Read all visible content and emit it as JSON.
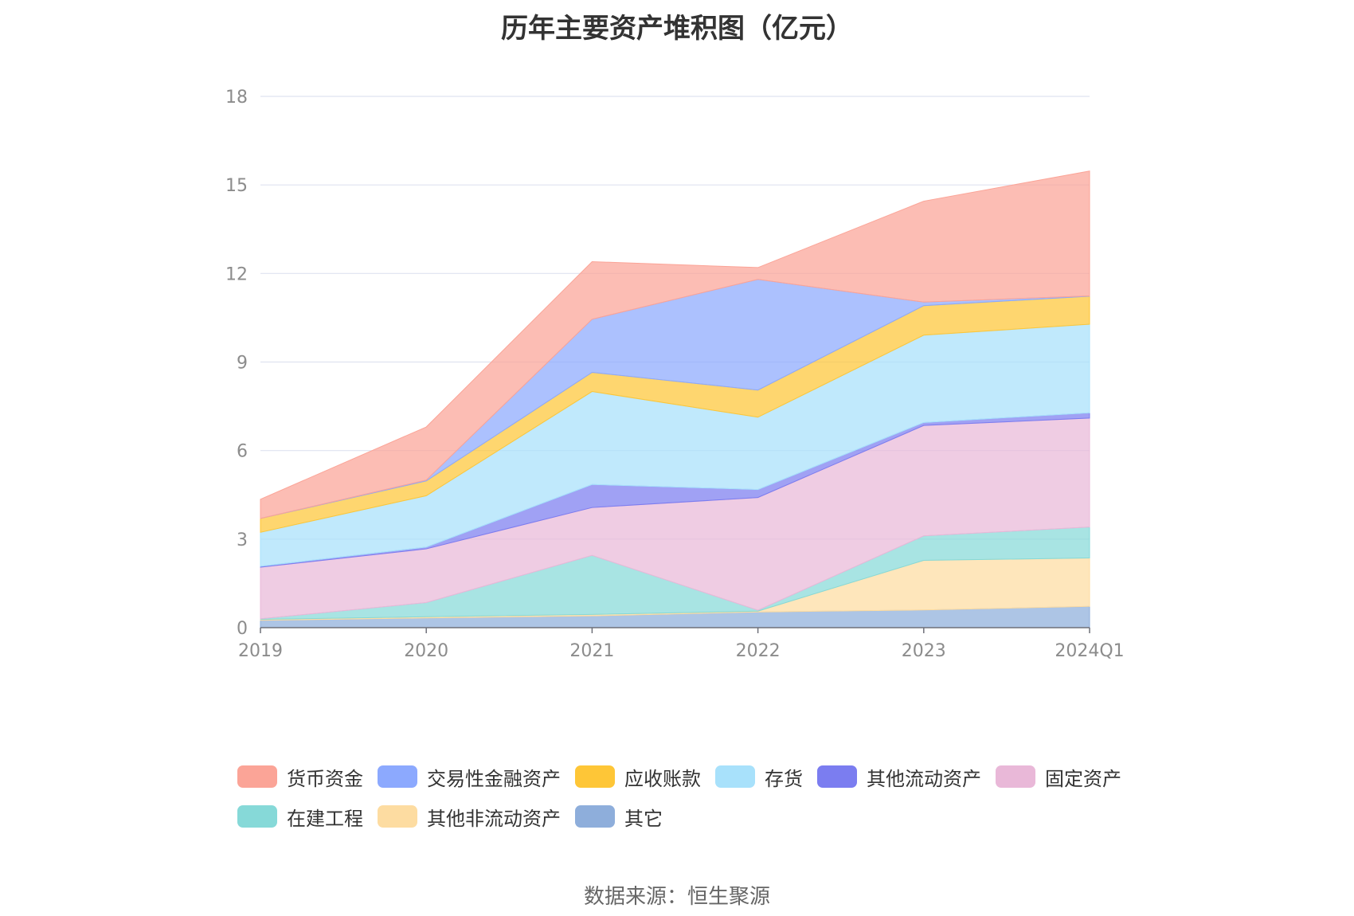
{
  "title": "历年主要资产堆积图（亿元）",
  "source": "数据来源：恒生聚源",
  "chart_data": {
    "type": "area",
    "stacked": true,
    "title": "历年主要资产堆积图（亿元）",
    "xlabel": "",
    "ylabel": "",
    "categories": [
      "2019",
      "2020",
      "2021",
      "2022",
      "2023",
      "2024Q1"
    ],
    "y_ticks": [
      0,
      3,
      6,
      9,
      12,
      15,
      18
    ],
    "ylim": [
      0,
      18
    ],
    "grid": true,
    "legend_position": "bottom",
    "series": [
      {
        "name": "其它",
        "color": "#8eaedb",
        "values": [
          0.25,
          0.33,
          0.4,
          0.53,
          0.6,
          0.72
        ]
      },
      {
        "name": "其他非流动资产",
        "color": "#fddca1",
        "values": [
          0.03,
          0.04,
          0.05,
          0.03,
          1.68,
          1.64
        ]
      },
      {
        "name": "在建工程",
        "color": "#86d9d8",
        "values": [
          0.02,
          0.48,
          2.0,
          0.03,
          0.83,
          1.05
        ]
      },
      {
        "name": "固定资产",
        "color": "#e9b8d8",
        "values": [
          1.75,
          1.82,
          1.62,
          3.82,
          3.74,
          3.69
        ]
      },
      {
        "name": "其他流动资产",
        "color": "#7b7df0",
        "values": [
          0.03,
          0.06,
          0.78,
          0.27,
          0.1,
          0.18
        ]
      },
      {
        "name": "存货",
        "color": "#a8e1fb",
        "values": [
          1.15,
          1.74,
          3.15,
          2.45,
          2.96,
          3.0
        ]
      },
      {
        "name": "应收账款",
        "color": "#fec637",
        "values": [
          0.47,
          0.5,
          0.65,
          0.92,
          1.0,
          0.95
        ]
      },
      {
        "name": "交易性金融资产",
        "color": "#8ca9fe",
        "values": [
          0.0,
          0.03,
          1.8,
          3.75,
          0.12,
          0.01
        ]
      },
      {
        "name": "货币资金",
        "color": "#fba497",
        "values": [
          0.65,
          1.8,
          1.95,
          0.4,
          3.42,
          4.23
        ]
      }
    ],
    "legend_order": [
      "货币资金",
      "交易性金融资产",
      "应收账款",
      "存货",
      "其他流动资产",
      "固定资产",
      "在建工程",
      "其他非流动资产",
      "其它"
    ]
  }
}
